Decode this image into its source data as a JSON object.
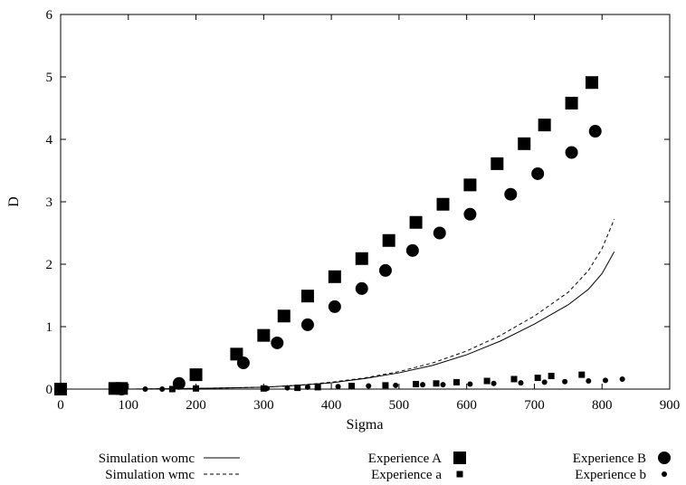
{
  "chart_data": {
    "type": "scatter",
    "title": "",
    "xlabel": "Sigma",
    "ylabel": "D",
    "xlim": [
      0,
      900
    ],
    "ylim": [
      0,
      6
    ],
    "xticks": [
      0,
      100,
      200,
      300,
      400,
      500,
      600,
      700,
      800,
      900
    ],
    "yticks": [
      0,
      1,
      2,
      3,
      4,
      5,
      6
    ],
    "grid": false,
    "legend_position": "bottom",
    "series": [
      {
        "name": "Simulation womc",
        "type": "line",
        "style": "solid",
        "color": "#000000",
        "x": [
          0,
          100,
          200,
          250,
          300,
          350,
          400,
          450,
          500,
          550,
          600,
          650,
          700,
          750,
          780,
          800,
          818
        ],
        "y": [
          0,
          0,
          0.01,
          0.02,
          0.03,
          0.06,
          0.1,
          0.17,
          0.26,
          0.38,
          0.55,
          0.77,
          1.04,
          1.35,
          1.6,
          1.85,
          2.2
        ]
      },
      {
        "name": "Simulation wmc",
        "type": "line",
        "style": "dashed",
        "color": "#000000",
        "x": [
          0,
          100,
          200,
          250,
          300,
          350,
          400,
          450,
          500,
          550,
          600,
          650,
          700,
          750,
          780,
          800,
          818
        ],
        "y": [
          0,
          0,
          0.01,
          0.02,
          0.03,
          0.06,
          0.11,
          0.18,
          0.28,
          0.42,
          0.61,
          0.86,
          1.17,
          1.55,
          1.9,
          2.25,
          2.72
        ]
      },
      {
        "name": "Experience A",
        "type": "scatter",
        "marker": "square",
        "size": "large",
        "x": [
          0,
          80,
          90,
          200,
          260,
          300,
          330,
          365,
          405,
          445,
          485,
          525,
          565,
          605,
          645,
          685,
          715,
          755,
          785
        ],
        "y": [
          0,
          0.01,
          0.01,
          0.23,
          0.56,
          0.86,
          1.17,
          1.49,
          1.8,
          2.09,
          2.38,
          2.67,
          2.96,
          3.27,
          3.61,
          3.93,
          4.23,
          4.58,
          4.91
        ]
      },
      {
        "name": "Experience B",
        "type": "scatter",
        "marker": "circle",
        "size": "large",
        "x": [
          90,
          175,
          270,
          320,
          365,
          405,
          445,
          480,
          520,
          560,
          605,
          665,
          705,
          755,
          790
        ],
        "y": [
          0,
          0.09,
          0.42,
          0.74,
          1.03,
          1.32,
          1.61,
          1.9,
          2.22,
          2.5,
          2.8,
          3.12,
          3.45,
          3.79,
          4.13
        ]
      },
      {
        "name": "Experience a",
        "type": "scatter",
        "marker": "square",
        "size": "small",
        "x": [
          165,
          200,
          300,
          350,
          380,
          430,
          480,
          525,
          555,
          585,
          630,
          670,
          705,
          725,
          770
        ],
        "y": [
          0,
          0.01,
          0.01,
          0.02,
          0.03,
          0.05,
          0.06,
          0.08,
          0.09,
          0.11,
          0.13,
          0.16,
          0.18,
          0.21,
          0.23
        ]
      },
      {
        "name": "Experience b",
        "type": "scatter",
        "marker": "circle",
        "size": "small",
        "x": [
          125,
          150,
          305,
          335,
          365,
          410,
          455,
          495,
          535,
          565,
          605,
          640,
          680,
          715,
          745,
          780,
          805,
          830
        ],
        "y": [
          0,
          0,
          0.01,
          0.02,
          0.03,
          0.04,
          0.05,
          0.06,
          0.07,
          0.07,
          0.08,
          0.09,
          0.1,
          0.11,
          0.12,
          0.13,
          0.14,
          0.16
        ]
      }
    ]
  }
}
